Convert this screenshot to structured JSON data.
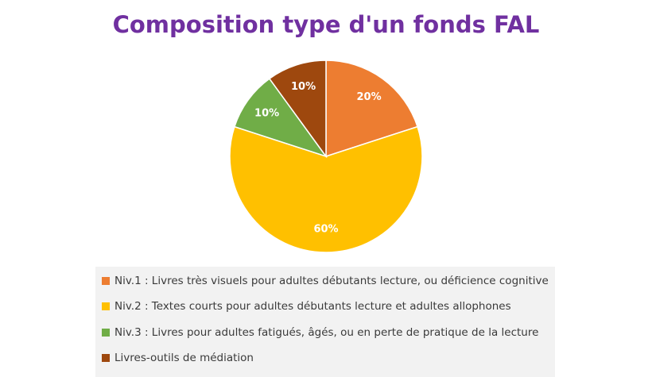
{
  "chart_data": {
    "type": "pie",
    "title": "Composition type d'un fonds FAL",
    "title_color": "#7030a0",
    "slices": [
      {
        "label": "Niv.1 : Livres très visuels pour adultes débutants lecture, ou déficience cognitive",
        "value": 20,
        "display": "20%",
        "color": "#ed7d31"
      },
      {
        "label": "Niv.2 : Textes courts pour adultes débutants lecture et adultes allophones",
        "value": 60,
        "display": "60%",
        "color": "#ffc000"
      },
      {
        "label": "Niv.3 : Livres pour adultes fatigués, âgés, ou en perte de pratique de la lecture",
        "value": 10,
        "display": "10%",
        "color": "#70ad47"
      },
      {
        "label": "Livres-outils de médiation",
        "value": 10,
        "display": "10%",
        "color": "#9e480e"
      }
    ],
    "legend_position": "bottom"
  }
}
